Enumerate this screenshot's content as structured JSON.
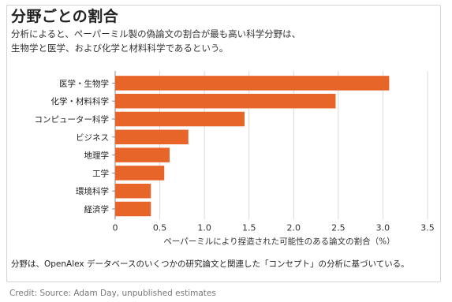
{
  "title": "分野ごとの割合",
  "subtitle_lines": [
    "分析によると、ペーパーミル製の偽論文の割合が最も高い科学分野は、",
    "生物学と医学、および化学と材料科学であるという。"
  ],
  "footnote": "分野は、OpenAlex データベースのいくつかの研究論文と関連した「コンセプト」の分析に基づいている。",
  "credit": "Credit: Source: Adam Day, unpublished estimates",
  "colors": {
    "bar": "#e8652a",
    "grid": "#d9d9d9",
    "axis": "#888888"
  },
  "chart_data": {
    "type": "bar",
    "orientation": "horizontal",
    "categories": [
      "医学・生物学",
      "化学・材料科学",
      "コンピューター科学",
      "ビジネス",
      "地理学",
      "工学",
      "環境科学",
      "経済学"
    ],
    "values": [
      3.07,
      2.47,
      1.45,
      0.82,
      0.61,
      0.55,
      0.4,
      0.4
    ],
    "xlabel": "ペーパーミルにより捏造された可能性のある論文の割合（%）",
    "ylabel": "",
    "xlim": [
      0,
      3.5
    ],
    "xticks": [
      "0",
      "0.5",
      "1.0",
      "1.5",
      "2.0",
      "2.5",
      "3.0",
      "3.5"
    ],
    "grid": true
  }
}
